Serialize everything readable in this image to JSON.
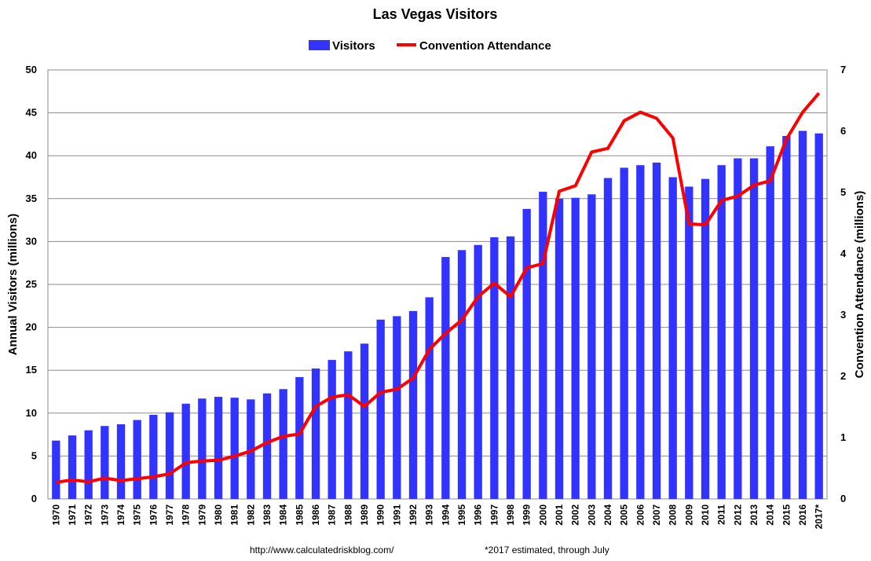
{
  "chart_data": {
    "type": "bar+line",
    "title": "Las Vegas Visitors",
    "ylabel_left": "Annual Visitors (millions)",
    "ylabel_right": "Convention Attendance (millions)",
    "ylim_left": [
      0,
      50
    ],
    "ylim_right": [
      0,
      7
    ],
    "yticks_left": [
      "0",
      "5",
      "10",
      "15",
      "20",
      "25",
      "30",
      "35",
      "40",
      "45",
      "50"
    ],
    "yticks_right": [
      "0",
      "1",
      "2",
      "3",
      "4",
      "5",
      "6",
      "7"
    ],
    "grid": true,
    "legend_position": "top-center",
    "colors": {
      "bars": "#3333ff",
      "line": "#ff0000"
    },
    "categories": [
      "1970",
      "1971",
      "1972",
      "1973",
      "1974",
      "1975",
      "1976",
      "1977",
      "1978",
      "1979",
      "1980",
      "1981",
      "1982",
      "1983",
      "1984",
      "1985",
      "1986",
      "1987",
      "1988",
      "1989",
      "1990",
      "1991",
      "1992",
      "1993",
      "1994",
      "1995",
      "1996",
      "1997",
      "1998",
      "1999",
      "2000",
      "2001",
      "2002",
      "2003",
      "2004",
      "2005",
      "2006",
      "2007",
      "2008",
      "2009",
      "2010",
      "2011",
      "2012",
      "2013",
      "2014",
      "2015",
      "2016",
      "2017*"
    ],
    "series": [
      {
        "name": "Visitors",
        "kind": "bar",
        "axis": "left",
        "values": [
          6.8,
          7.4,
          8.0,
          8.5,
          8.7,
          9.2,
          9.8,
          10.1,
          11.1,
          11.7,
          11.9,
          11.8,
          11.6,
          12.3,
          12.8,
          14.2,
          15.2,
          16.2,
          17.2,
          18.1,
          20.9,
          21.3,
          21.9,
          23.5,
          28.2,
          29.0,
          29.6,
          30.5,
          30.6,
          33.8,
          35.8,
          35.0,
          35.1,
          35.5,
          37.4,
          38.6,
          38.9,
          39.2,
          37.5,
          36.4,
          37.3,
          38.9,
          39.7,
          39.7,
          41.1,
          42.3,
          42.9,
          42.6
        ]
      },
      {
        "name": "Convention Attendance",
        "kind": "line",
        "axis": "right",
        "values": [
          0.27,
          0.31,
          0.28,
          0.34,
          0.3,
          0.33,
          0.36,
          0.41,
          0.59,
          0.62,
          0.63,
          0.7,
          0.78,
          0.92,
          1.02,
          1.06,
          1.51,
          1.66,
          1.7,
          1.51,
          1.74,
          1.79,
          1.97,
          2.44,
          2.7,
          2.92,
          3.3,
          3.52,
          3.3,
          3.77,
          3.84,
          5.02,
          5.11,
          5.66,
          5.72,
          6.17,
          6.31,
          6.21,
          5.89,
          4.49,
          4.47,
          4.87,
          4.94,
          5.12,
          5.19,
          5.87,
          6.31,
          6.62
        ]
      }
    ],
    "footer_left": "http://www.calculatedriskblog.com/",
    "footer_right": "*2017 estimated, through July"
  }
}
